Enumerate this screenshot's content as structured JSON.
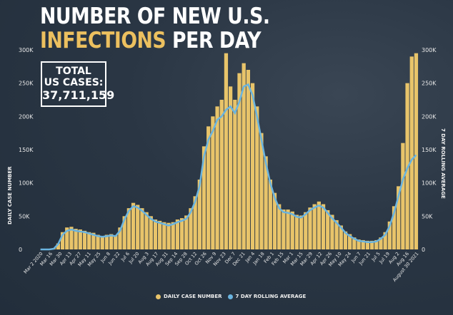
{
  "header": {
    "title_line1": "NUMBER OF NEW U.S.",
    "title_line2_accent": "INFECTIONS",
    "title_line2_rest": "PER DAY"
  },
  "total_box": {
    "line1": "TOTAL",
    "line2": "US CASES:",
    "value": "37,711,159"
  },
  "colors": {
    "bar": "#e8c46a",
    "line": "#6ab4e0",
    "title_accent": "#ecc05f",
    "background": "#243140"
  },
  "chart_data": {
    "type": "bar",
    "ylabel": "DAILY CASE NUMBER",
    "ylabel_right": "7 DAY ROLLING AVERAGE",
    "ylim": [
      0,
      300000
    ],
    "yticks": [
      "0",
      "50K",
      "100K",
      "150K",
      "200K",
      "250K",
      "300K"
    ],
    "ytick_values": [
      0,
      50000,
      100000,
      150000,
      200000,
      250000,
      300000
    ],
    "xticks": [
      "Mar 2 2020",
      "Mar 16",
      "Mar 30",
      "Apr 13",
      "Apr 27",
      "May 11",
      "May 25",
      "Jun 8",
      "Jun 22",
      "Jul 6",
      "Jul 20",
      "Aug 3",
      "Aug 17",
      "Aug 31",
      "Sep 14",
      "Sep 28",
      "Oct 12",
      "Oct 26",
      "Nov 9",
      "Nov 23",
      "Dec 7",
      "Dec 21",
      "Jan 4",
      "Jan 18",
      "Feb 1",
      "Feb 15",
      "Mar 1",
      "Mar 15",
      "Mar 29",
      "Apr 12",
      "Apr 26",
      "May 10",
      "May 24",
      "Jun 7",
      "Jun 21",
      "Jul 5",
      "Jul 19",
      "Aug 2",
      "Aug 16",
      "August 30 2021"
    ],
    "legend": [
      "DAILY CASE NUMBER",
      "7 DAY ROLLING AVERAGE"
    ],
    "legend_position": "bottom-center",
    "series": [
      {
        "name": "7 DAY ROLLING AVERAGE",
        "values": [
          0,
          0,
          0,
          1000,
          8000,
          22000,
          28000,
          30000,
          28000,
          27000,
          26000,
          24000,
          22000,
          20000,
          19000,
          20000,
          21000,
          20000,
          28000,
          45000,
          58000,
          65000,
          63000,
          58000,
          52000,
          46000,
          42000,
          40000,
          38000,
          36000,
          38000,
          41000,
          43000,
          46000,
          56000,
          72000,
          95000,
          140000,
          165000,
          178000,
          195000,
          200000,
          210000,
          215000,
          205000,
          222000,
          245000,
          248000,
          232000,
          200000,
          165000,
          130000,
          100000,
          78000,
          62000,
          56000,
          55000,
          53000,
          49000,
          48000,
          53000,
          59000,
          63000,
          66000,
          63000,
          55000,
          47000,
          40000,
          33000,
          25000,
          20000,
          16000,
          13000,
          12000,
          11000,
          11000,
          12000,
          16000,
          22000,
          35000,
          55000,
          80000,
          105000,
          122000,
          135000,
          142000
        ]
      },
      {
        "name": "DAILY CASE NUMBER",
        "values": [
          0,
          0,
          0,
          2000,
          9000,
          26000,
          33000,
          34000,
          31000,
          30000,
          28000,
          26000,
          25000,
          22000,
          20000,
          22000,
          23000,
          21000,
          33000,
          50000,
          62000,
          70000,
          67000,
          62000,
          56000,
          50000,
          45000,
          43000,
          41000,
          40000,
          41000,
          45000,
          47000,
          51000,
          62000,
          80000,
          105000,
          155000,
          185000,
          200000,
          215000,
          225000,
          295000,
          245000,
          225000,
          265000,
          280000,
          270000,
          250000,
          215000,
          175000,
          140000,
          105000,
          85000,
          68000,
          60000,
          60000,
          57000,
          52000,
          51000,
          56000,
          63000,
          68000,
          72000,
          68000,
          59000,
          52000,
          44000,
          36000,
          27000,
          23000,
          18000,
          15000,
          14000,
          13000,
          13000,
          14000,
          18000,
          26000,
          42000,
          65000,
          95000,
          160000,
          250000,
          290000,
          295000
        ]
      }
    ]
  }
}
